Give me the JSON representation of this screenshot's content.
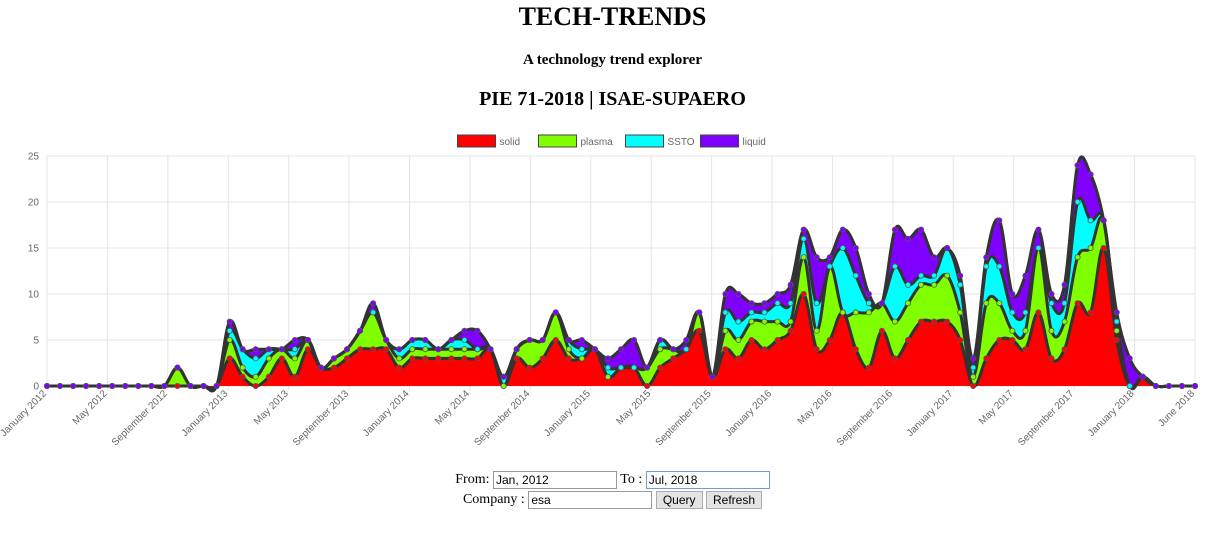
{
  "header": {
    "title": "TECH-TRENDS",
    "subtitle": "A technology trend explorer",
    "org": "PIE 71-2018 | ISAE-SUPAERO"
  },
  "controls": {
    "from_label": "From:",
    "from_value": "Jan, 2012",
    "to_label": "To :",
    "to_value": "Jul, 2018",
    "company_label": "Company :",
    "company_value": "esa",
    "query_label": "Query",
    "refresh_label": "Refresh"
  },
  "chart_data": {
    "type": "area",
    "stacked": true,
    "legend_position": "top",
    "grid": true,
    "ylim": [
      0,
      25
    ],
    "yticks": [
      "0",
      "5",
      "10",
      "15",
      "20",
      "25"
    ],
    "xtick_labels": [
      "January 2012",
      "May 2012",
      "September 2012",
      "January 2013",
      "May 2013",
      "September 2013",
      "January 2014",
      "May 2014",
      "September 2014",
      "January 2015",
      "May 2015",
      "September 2015",
      "January 2016",
      "May 2016",
      "September 2016",
      "January 2017",
      "May 2017",
      "September 2017",
      "January 2018",
      "June 2018"
    ],
    "colors": {
      "solid": "#ff0000",
      "plasma": "#80ff00",
      "SSTO": "#00ffff",
      "liquid": "#8000ff",
      "line": "#333333"
    },
    "series": [
      {
        "name": "solid",
        "color": "#ff0000",
        "values": [
          0,
          0,
          0,
          0,
          0,
          0,
          0,
          0,
          0,
          0,
          0,
          0,
          0,
          0,
          3,
          1,
          0,
          1,
          3,
          1,
          4,
          2,
          2,
          3,
          4,
          4,
          4,
          2,
          3,
          3,
          3,
          3,
          3,
          3,
          4,
          0,
          3,
          2,
          3,
          5,
          3,
          3,
          4,
          1,
          2,
          2,
          0,
          2,
          3,
          4,
          6,
          1,
          4,
          3,
          5,
          4,
          5,
          6,
          10,
          4,
          5,
          8,
          4,
          2,
          6,
          3,
          5,
          7,
          7,
          7,
          5,
          0,
          3,
          5,
          5,
          4,
          8,
          3,
          4,
          9,
          8,
          15,
          5,
          0,
          1,
          0,
          0,
          0,
          0
        ]
      },
      {
        "name": "plasma",
        "color": "#80ff00",
        "values": [
          0,
          0,
          0,
          0,
          0,
          0,
          0,
          0,
          0,
          0,
          2,
          0,
          0,
          0,
          2,
          1,
          1,
          2,
          1,
          2,
          1,
          0,
          1,
          1,
          2,
          4,
          1,
          1,
          1,
          1,
          1,
          1,
          1,
          1,
          0,
          0,
          1,
          3,
          2,
          3,
          1,
          0,
          0,
          0,
          0,
          0,
          2,
          2,
          1,
          0,
          2,
          0,
          2,
          2,
          2,
          3,
          2,
          1,
          4,
          2,
          8,
          0,
          4,
          6,
          3,
          4,
          4,
          4,
          4,
          5,
          3,
          1,
          6,
          4,
          1,
          2,
          7,
          3,
          3,
          5,
          7,
          3,
          1,
          0,
          0,
          0,
          0,
          0,
          0
        ]
      },
      {
        "name": "SSTO",
        "color": "#00ffff",
        "values": [
          0,
          0,
          0,
          0,
          0,
          0,
          0,
          0,
          0,
          0,
          0,
          0,
          0,
          0,
          1,
          2,
          2,
          1,
          0,
          1,
          0,
          0,
          0,
          0,
          0,
          0,
          0,
          1,
          1,
          1,
          0,
          1,
          1,
          0,
          0,
          1,
          0,
          0,
          0,
          0,
          1,
          1,
          0,
          1,
          0,
          0,
          0,
          1,
          0,
          0,
          0,
          0,
          2,
          2,
          1,
          1,
          2,
          2,
          2,
          3,
          0,
          7,
          4,
          1,
          0,
          6,
          2,
          1,
          1,
          3,
          3,
          1,
          4,
          4,
          2,
          2,
          0,
          3,
          2,
          6,
          3,
          0,
          1,
          0,
          0,
          0,
          0,
          0,
          0
        ]
      },
      {
        "name": "liquid",
        "color": "#8000ff",
        "values": [
          0,
          0,
          0,
          0,
          0,
          0,
          0,
          0,
          0,
          0,
          0,
          0,
          0,
          0,
          1,
          0,
          1,
          0,
          0,
          1,
          0,
          0,
          0,
          0,
          0,
          1,
          0,
          0,
          0,
          0,
          0,
          0,
          1,
          2,
          0,
          0,
          0,
          0,
          0,
          0,
          0,
          1,
          0,
          1,
          2,
          3,
          0,
          0,
          0,
          1,
          0,
          0,
          2,
          3,
          1,
          1,
          1,
          2,
          1,
          5,
          1,
          2,
          3,
          1,
          0,
          4,
          5,
          5,
          2,
          0,
          1,
          1,
          1,
          5,
          2,
          4,
          2,
          1,
          2,
          4,
          5,
          0,
          1,
          3,
          0,
          0,
          0,
          0,
          0
        ]
      }
    ]
  }
}
